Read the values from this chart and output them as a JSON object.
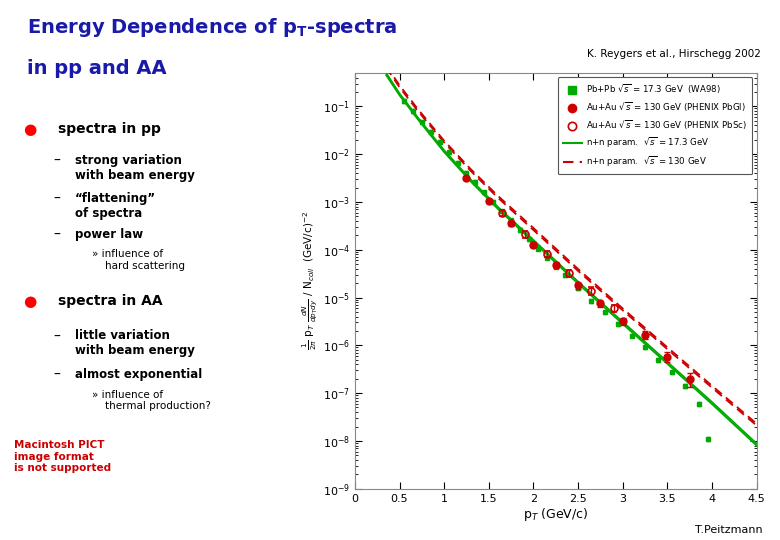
{
  "reference": "K. Reygers et al., Hirschegg 2002",
  "author": "T.Peitzmann",
  "title_color": "#1a1aaa",
  "bg_color": "#ffffff",
  "plot_bg": "#ffffff",
  "green_line_color": "#00aa00",
  "red_dashed_color": "#cc0000",
  "pbpb_color": "#00aa00",
  "auau_filled_color": "#cc0000",
  "auau_open_color": "#cc0000",
  "legend_entries": [
    "Pb+Pb $\\sqrt{s}$ = 17.3 GeV  (WA98)",
    "Au+Au $\\sqrt{s}$ = 130 GeV (PHENIX PbGl)",
    "Au+Au $\\sqrt{s}$ = 130 GeV (PHENIX PbSc)",
    "n+n param.  $\\sqrt{s}$ = 17.3 GeV",
    "n+n param.  $\\sqrt{s}$ = 130 GeV"
  ],
  "pbpb_pt": [
    0.55,
    0.65,
    0.75,
    0.85,
    0.95,
    1.05,
    1.15,
    1.25,
    1.35,
    1.45,
    1.55,
    1.65,
    1.75,
    1.85,
    1.95,
    2.05,
    2.15,
    2.25,
    2.35,
    2.5,
    2.65,
    2.8,
    2.95,
    3.1,
    3.25,
    3.4,
    3.55,
    3.7,
    3.85,
    3.95
  ],
  "pbpb_y": [
    0.13,
    0.08,
    0.048,
    0.029,
    0.018,
    0.011,
    0.0065,
    0.004,
    0.0026,
    0.0016,
    0.001,
    0.00063,
    0.00041,
    0.00026,
    0.000165,
    0.000105,
    6.8e-05,
    4.4e-05,
    2.9e-05,
    1.55e-05,
    8.5e-06,
    4.9e-06,
    2.8e-06,
    1.6e-06,
    9e-07,
    5e-07,
    2.7e-07,
    1.4e-07,
    6e-08,
    1.1e-08
  ],
  "pbpb_yerr_lo": [
    0.01,
    0.007,
    0.004,
    0.0025,
    0.0015,
    0.001,
    0.0006,
    0.00035,
    0.00022,
    0.00013,
    8e-05,
    5e-05,
    3.3e-05,
    2e-05,
    1.3e-05,
    8.5e-06,
    5.5e-06,
    3.5e-06,
    2.3e-06,
    1.2e-06,
    7e-07,
    4e-07,
    2.3e-07,
    1.3e-07,
    7.5e-08,
    4.2e-08,
    2.3e-08,
    1.2e-08,
    5e-09,
    1e-09
  ],
  "pbpb_yerr_hi": [
    0.01,
    0.007,
    0.004,
    0.0025,
    0.0015,
    0.001,
    0.0006,
    0.00035,
    0.00022,
    0.00013,
    8e-05,
    5e-05,
    3.3e-05,
    2e-05,
    1.3e-05,
    8.5e-06,
    5.5e-06,
    3.5e-06,
    2.3e-06,
    1.2e-06,
    7e-07,
    4e-07,
    2.3e-07,
    1.3e-07,
    7.5e-08,
    4.2e-08,
    2.3e-08,
    1.2e-08,
    5e-09,
    1e-09
  ],
  "auau_filled_pt": [
    1.25,
    1.5,
    1.75,
    2.0,
    2.25,
    2.5,
    2.75,
    3.0,
    3.25,
    3.5,
    3.75
  ],
  "auau_filled_y": [
    0.0032,
    0.00105,
    0.00036,
    0.000128,
    4.8e-05,
    1.8e-05,
    7.5e-06,
    3.2e-06,
    1.65e-06,
    5.8e-07,
    2e-07
  ],
  "auau_filled_yerr": [
    0.00032,
    0.000105,
    4.5e-05,
    1.6e-05,
    6.5e-06,
    2.6e-06,
    1.1e-06,
    4.8e-07,
    3.2e-07,
    1.3e-07,
    6.5e-08
  ],
  "auau_open_pt": [
    1.65,
    1.9,
    2.15,
    2.4,
    2.65,
    2.9
  ],
  "auau_open_y": [
    0.0006,
    0.00021,
    8.2e-05,
    3.3e-05,
    1.4e-05,
    6e-06
  ],
  "auau_open_yerr": [
    9e-05,
    3.2e-05,
    1.3e-05,
    5.5e-06,
    2.8e-06,
    1.1e-06
  ],
  "green_line_pt": [
    0.35,
    0.5,
    0.7,
    1.0,
    1.3,
    1.6,
    2.0,
    2.5,
    3.0,
    3.5,
    4.0,
    4.5
  ],
  "green_line_y1": [
    0.45,
    0.17,
    0.055,
    0.011,
    0.00265,
    0.00072,
    0.000145,
    1.95e-05,
    2.8e-06,
    4.1e-07,
    5.9e-08,
    8e-09
  ],
  "green_line_y2": [
    0.5,
    0.185,
    0.06,
    0.012,
    0.0029,
    0.00079,
    0.00016,
    2.15e-05,
    3.1e-06,
    4.5e-07,
    6.5e-08,
    8.8e-09
  ],
  "red_line_pt": [
    0.35,
    0.5,
    0.7,
    1.0,
    1.3,
    1.6,
    2.0,
    2.5,
    3.0,
    3.5,
    4.0,
    4.5
  ],
  "red_line_y1": [
    0.65,
    0.25,
    0.082,
    0.0175,
    0.0044,
    0.00123,
    0.000258,
    3.6e-05,
    5.4e-06,
    8.3e-07,
    1.3e-07,
    2.1e-08
  ],
  "red_line_y2": [
    0.72,
    0.275,
    0.09,
    0.019,
    0.0048,
    0.00135,
    0.000284,
    3.95e-05,
    5.9e-06,
    9.1e-07,
    1.43e-07,
    2.3e-08
  ],
  "xlim": [
    0,
    4.5
  ],
  "ylim": [
    1e-09,
    0.5
  ]
}
